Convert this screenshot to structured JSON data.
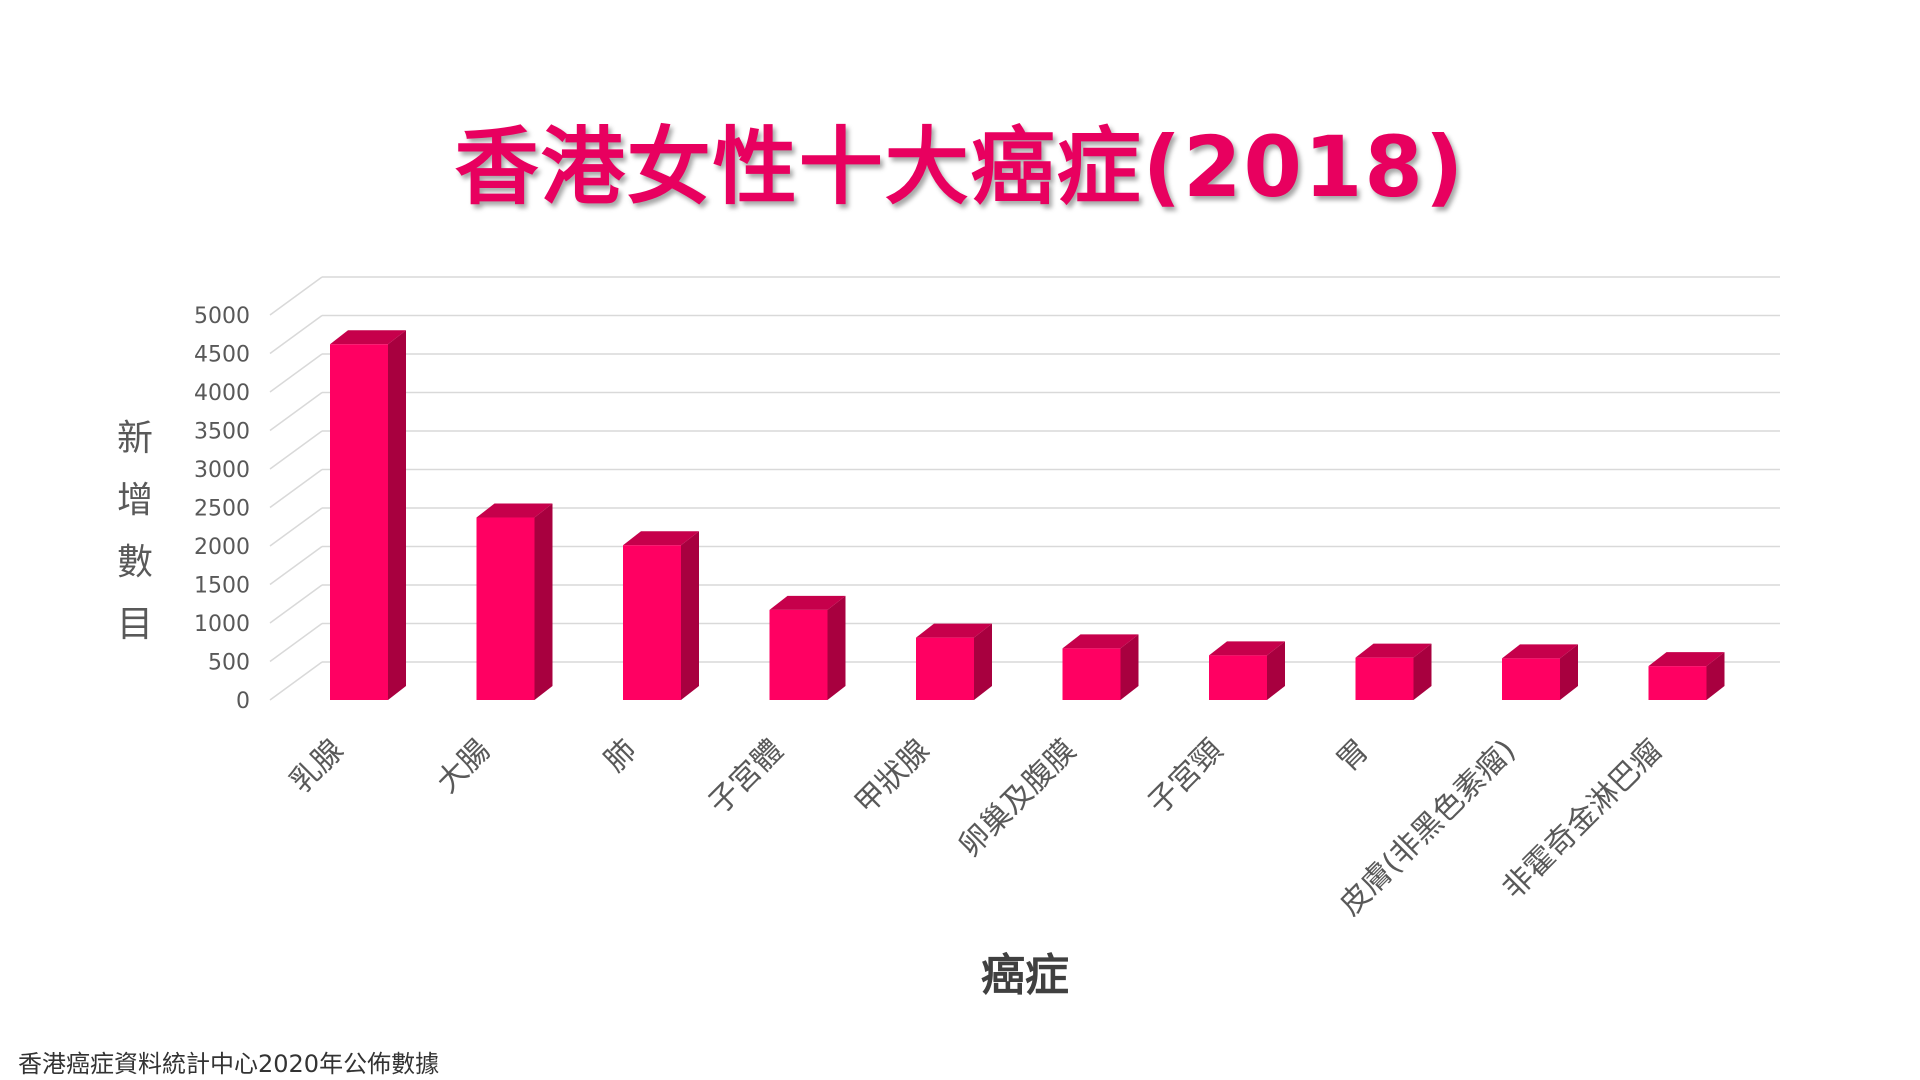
{
  "footer": {
    "source": "香港癌症資料統計中心2020年公佈數據"
  },
  "colors": {
    "bar_front": "#ff0062",
    "bar_side": "#a8003f",
    "bar_top": "#c6004b",
    "title": "#e8005f",
    "grid": "#d9d9d9",
    "text": "#595959"
  },
  "chart_data": {
    "type": "bar",
    "title": "香港女性十大癌症(2018)",
    "xlabel": "癌症",
    "ylabel": "新增數目",
    "ylim": [
      0,
      5000
    ],
    "yticks": [
      0,
      500,
      1000,
      1500,
      2000,
      2500,
      3000,
      3500,
      4000,
      4500,
      5000
    ],
    "categories": [
      "乳腺",
      "大腸",
      "肺",
      "子宮體",
      "甲狀腺",
      "卵巢及腹膜",
      "子宮頸",
      "胃",
      "皮膚(非黑色素瘤)",
      "非霍奇金淋巴瘤"
    ],
    "values": [
      4620,
      2370,
      2010,
      1170,
      810,
      670,
      580,
      550,
      540,
      440
    ],
    "grid": true,
    "legend": "none"
  }
}
